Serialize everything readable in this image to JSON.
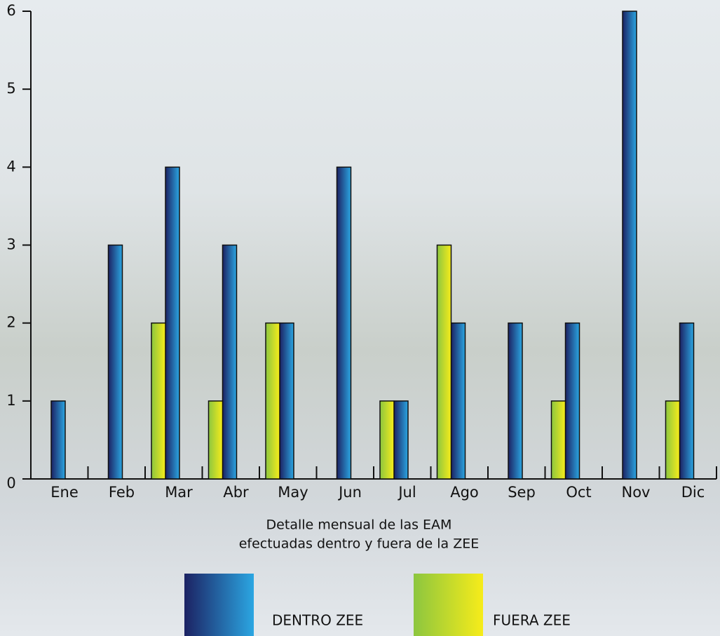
{
  "chart_data": {
    "type": "bar",
    "categories": [
      "Ene",
      "Feb",
      "Mar",
      "Abr",
      "May",
      "Jun",
      "Jul",
      "Ago",
      "Sep",
      "Oct",
      "Nov",
      "Dic"
    ],
    "series": [
      {
        "name": "DENTRO ZEE",
        "gradient": [
          "#1c2263",
          "#2ba6e2"
        ],
        "values": [
          1,
          3,
          4,
          3,
          2,
          4,
          1,
          2,
          2,
          2,
          6,
          2
        ]
      },
      {
        "name": "FUERA ZEE",
        "gradient": [
          "#8cc63f",
          "#f7ec1a"
        ],
        "values": [
          0,
          0,
          2,
          1,
          2,
          0,
          1,
          3,
          0,
          1,
          0,
          1
        ]
      }
    ],
    "xlabel": [
      "Detalle mensual de las EAM",
      "efectuadas dentro y fuera de la ZEE"
    ],
    "ylim": [
      0,
      6
    ],
    "yticks": [
      0,
      1,
      2,
      3,
      4,
      5,
      6
    ]
  }
}
